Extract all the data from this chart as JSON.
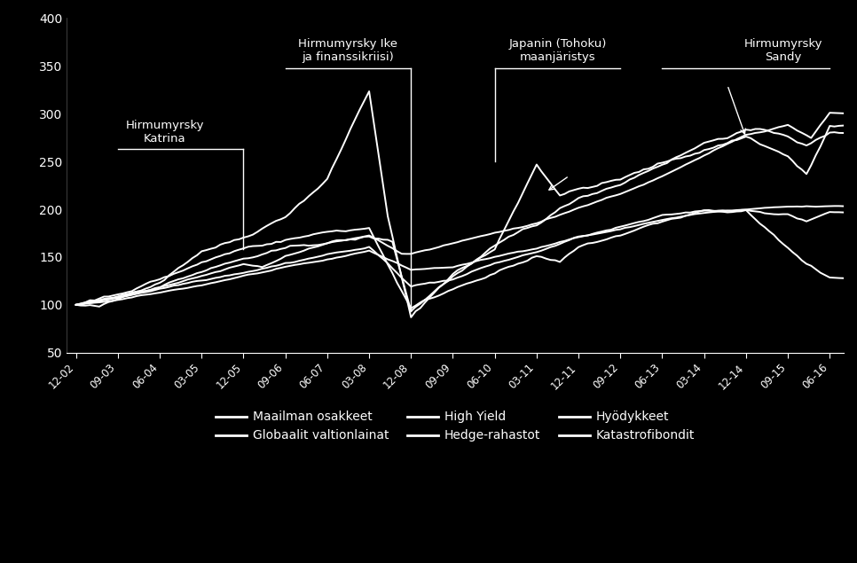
{
  "background_color": "#000000",
  "text_color": "#ffffff",
  "ylim": [
    50,
    400
  ],
  "yticks": [
    50,
    100,
    150,
    200,
    250,
    300,
    350,
    400
  ],
  "xtick_labels": [
    "12-02",
    "09-03",
    "06-04",
    "03-05",
    "12-05",
    "09-06",
    "06-07",
    "03-08",
    "12-08",
    "09-09",
    "06-10",
    "03-11",
    "12-11",
    "09-12",
    "06-13",
    "03-14",
    "12-14",
    "09-15",
    "06-16"
  ],
  "legend_entries": [
    "Maailman osakkeet",
    "Globaalit valtionlainat",
    "High Yield",
    "Hedge-rahastot",
    "Hyödykkeet",
    "Katastrofibondit"
  ]
}
